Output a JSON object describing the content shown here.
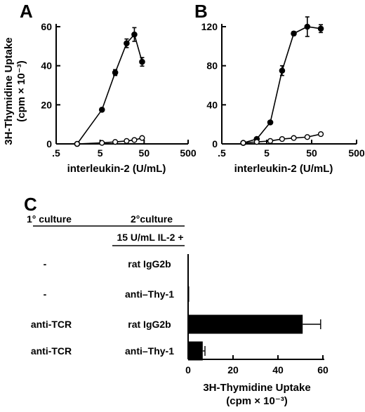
{
  "ylabel_A_line1": "3H-Thymidine Uptake",
  "ylabel_A_line2": "(cpm × 10⁻³)",
  "chart_data": [
    {
      "panel": "A",
      "type": "line",
      "xscale": "log",
      "xlabel": "interleukin-2 (U/mL)",
      "xticks": [
        ".5",
        "5",
        "50",
        "500"
      ],
      "xlim": [
        0.5,
        500
      ],
      "ylim": [
        0,
        60
      ],
      "yticks": [
        "0",
        "20",
        "40",
        "60"
      ],
      "series": [
        {
          "marker": "filled-circle",
          "x": [
            1.5,
            5.5,
            11,
            20,
            30,
            45
          ],
          "y": [
            0,
            17.5,
            36.5,
            51.5,
            56,
            42
          ],
          "err": [
            0,
            0.8,
            1.5,
            2.2,
            3.5,
            2.2
          ]
        },
        {
          "marker": "open-circle",
          "x": [
            1.5,
            5.5,
            11,
            20,
            30,
            45
          ],
          "y": [
            0,
            0.5,
            1,
            1.5,
            2,
            3
          ],
          "err": [
            0,
            0,
            0,
            0,
            0,
            0
          ]
        }
      ]
    },
    {
      "panel": "B",
      "type": "line",
      "xscale": "log",
      "xlabel": "interleukin-2 (U/mL)",
      "xticks": [
        ".5",
        "5",
        "50",
        "500"
      ],
      "xlim": [
        0.5,
        500
      ],
      "ylim": [
        0,
        120
      ],
      "yticks": [
        "0",
        "40",
        "80",
        "120"
      ],
      "series": [
        {
          "marker": "filled-circle",
          "x": [
            1.5,
            3,
            6,
            11,
            20,
            40,
            80
          ],
          "y": [
            1,
            5,
            22,
            75,
            113,
            120,
            118
          ],
          "err": [
            0,
            0,
            0,
            5,
            2,
            10,
            4
          ]
        },
        {
          "marker": "open-circle",
          "x": [
            1.5,
            3,
            6,
            11,
            20,
            40,
            80
          ],
          "y": [
            1,
            2,
            3,
            5,
            6,
            7,
            10
          ],
          "err": [
            0,
            0,
            0,
            0,
            0,
            0,
            0
          ]
        }
      ]
    },
    {
      "panel": "C",
      "type": "bar",
      "orientation": "horizontal",
      "col1_header": "1° culture",
      "col2_header": "2°culture",
      "col2_subheader": "15 U/mL IL-2 +",
      "rows": [
        {
          "primary": "-",
          "secondary": "rat IgG2b",
          "value": 0,
          "err": 0
        },
        {
          "primary": "-",
          "secondary": "anti–Thy-1",
          "value": 0.3,
          "err": 0
        },
        {
          "primary": "anti-TCR",
          "secondary": "rat IgG2b",
          "value": 51,
          "err": 8
        },
        {
          "primary": "anti-TCR",
          "secondary": "anti–Thy-1",
          "value": 6.5,
          "err": 1
        }
      ],
      "xlim": [
        0,
        60
      ],
      "xticks": [
        "0",
        "20",
        "40",
        "60"
      ],
      "xlabel_line1": "3H-Thymidine Uptake",
      "xlabel_line2": "(cpm × 10⁻³)"
    }
  ]
}
